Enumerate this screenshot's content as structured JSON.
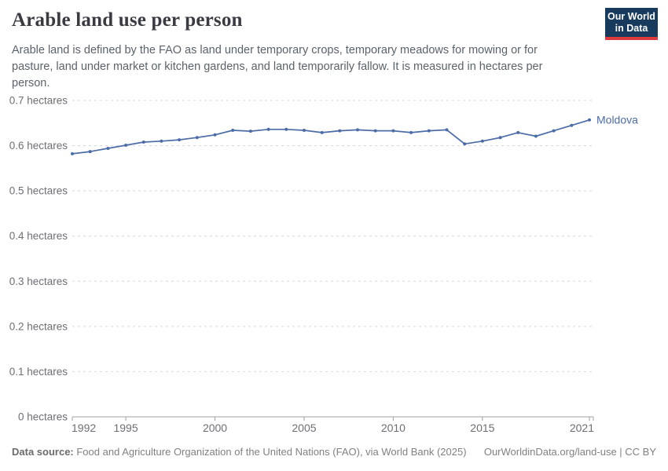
{
  "header": {
    "title": "Arable land use per person",
    "subtitle": "Arable land is defined by the FAO as land under temporary crops, temporary meadows for mowing or for pasture, land under market or kitchen gardens, and land temporarily fallow. It is measured in hectares per person.",
    "logo": {
      "line1": "Our World",
      "line2": "in Data",
      "bg_color": "#183a5d",
      "accent_color": "#dc3a3c"
    }
  },
  "chart_data": {
    "type": "line",
    "title": "Arable land use per person",
    "unit": "hectares",
    "x": [
      1992,
      1993,
      1994,
      1995,
      1996,
      1997,
      1998,
      1999,
      2000,
      2001,
      2002,
      2003,
      2004,
      2005,
      2006,
      2007,
      2008,
      2009,
      2010,
      2011,
      2012,
      2013,
      2014,
      2015,
      2016,
      2017,
      2018,
      2019,
      2020,
      2021
    ],
    "series": [
      {
        "name": "Moldova",
        "color": "#4C6CA8",
        "values": [
          0.582,
          0.587,
          0.594,
          0.601,
          0.608,
          0.61,
          0.613,
          0.618,
          0.624,
          0.634,
          0.632,
          0.636,
          0.636,
          0.634,
          0.629,
          0.633,
          0.635,
          0.633,
          0.633,
          0.629,
          0.633,
          0.635,
          0.604,
          0.61,
          0.618,
          0.629,
          0.621,
          0.633,
          0.645,
          0.657
        ]
      }
    ],
    "ylim": [
      0,
      0.7
    ],
    "yticks": [
      {
        "value": 0,
        "label": "0 hectares"
      },
      {
        "value": 0.1,
        "label": "0.1 hectares"
      },
      {
        "value": 0.2,
        "label": "0.2 hectares"
      },
      {
        "value": 0.3,
        "label": "0.3 hectares"
      },
      {
        "value": 0.4,
        "label": "0.4 hectares"
      },
      {
        "value": 0.5,
        "label": "0.5 hectares"
      },
      {
        "value": 0.6,
        "label": "0.6 hectares"
      },
      {
        "value": 0.7,
        "label": "0.7 hectares"
      }
    ],
    "xticks": [
      {
        "value": 1992,
        "label": "1992"
      },
      {
        "value": 1995,
        "label": "1995"
      },
      {
        "value": 2000,
        "label": "2000"
      },
      {
        "value": 2005,
        "label": "2005"
      },
      {
        "value": 2010,
        "label": "2010"
      },
      {
        "value": 2015,
        "label": "2015"
      },
      {
        "value": 2021,
        "label": "2021"
      }
    ],
    "grid": "horizontal-dashed",
    "legend_position": "end-of-line-label",
    "colors": {
      "grid": "#d7d7d7",
      "axis": "#a1a1a1",
      "tick_label": "#6e6e76"
    }
  },
  "footer": {
    "datasource_label": "Data source:",
    "datasource_text": " Food and Agriculture Organization of the United Nations (FAO), via World Bank (2025)",
    "link_text": "OurWorldinData.org/land-use | CC BY"
  }
}
